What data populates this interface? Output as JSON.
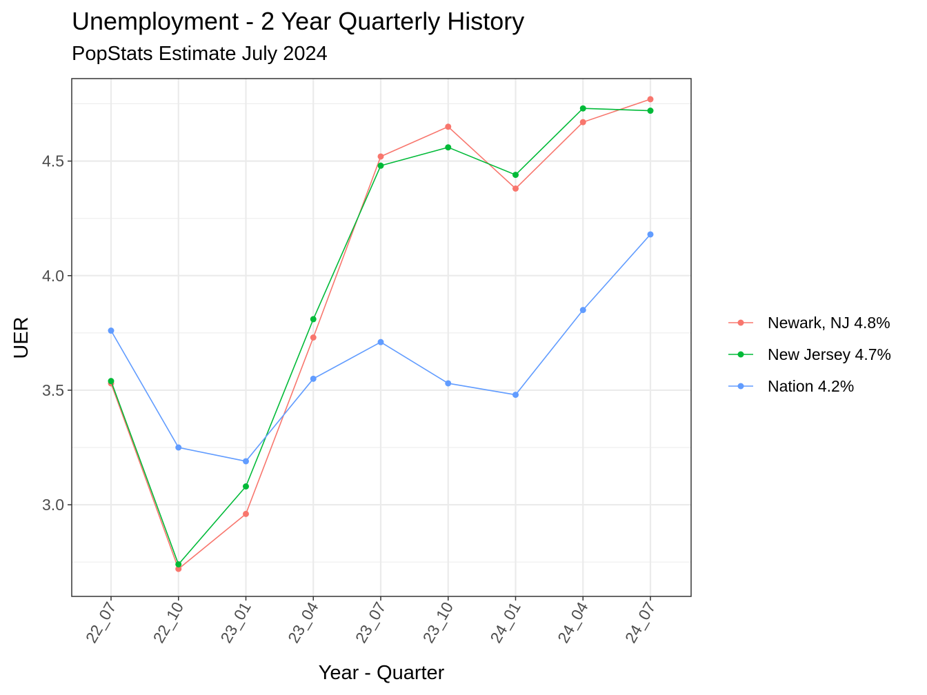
{
  "chart_data": {
    "type": "line",
    "title": "Unemployment - 2 Year Quarterly History",
    "subtitle": "PopStats Estimate July 2024",
    "xlabel": "Year - Quarter",
    "ylabel": "UER",
    "categories": [
      "22_07",
      "22_10",
      "23_01",
      "23_04",
      "23_07",
      "23_10",
      "24_01",
      "24_04",
      "24_07"
    ],
    "ylim": [
      2.6,
      4.86
    ],
    "yticks": [
      3.0,
      3.5,
      4.0,
      4.5
    ],
    "ytick_labels": [
      "3.0",
      "3.5",
      "4.0",
      "4.5"
    ],
    "grid": true,
    "legend_position": "right",
    "series": [
      {
        "name": "Newark, NJ 4.8%",
        "color": "#F8766D",
        "values": [
          3.53,
          2.72,
          2.96,
          3.73,
          4.52,
          4.65,
          4.38,
          4.67,
          4.77
        ]
      },
      {
        "name": "New Jersey 4.7%",
        "color": "#00BA38",
        "values": [
          3.54,
          2.74,
          3.08,
          3.81,
          4.48,
          4.56,
          4.44,
          4.73,
          4.72
        ]
      },
      {
        "name": "Nation 4.2%",
        "color": "#619CFF",
        "values": [
          3.76,
          3.25,
          3.19,
          3.55,
          3.71,
          3.53,
          3.48,
          3.85,
          4.18
        ]
      }
    ]
  }
}
